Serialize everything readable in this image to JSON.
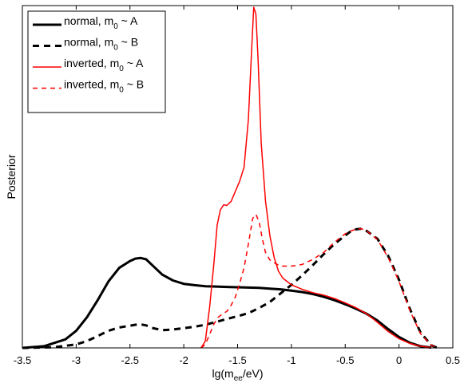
{
  "chart_data": {
    "type": "line",
    "title": "",
    "xlabel": {
      "main": "lg(m",
      "sub": "ee",
      "tail": "/eV)"
    },
    "ylabel": "Posterior",
    "xlim": [
      -3.5,
      0.5
    ],
    "ylim": [
      0,
      1
    ],
    "xticks": [
      -3.5,
      -3,
      -2.5,
      -2,
      -1.5,
      -1,
      -0.5,
      0,
      0.5
    ],
    "xtick_labels": [
      "-3.5",
      "-3",
      "-2.5",
      "-2",
      "-1.5",
      "-1",
      "-0.5",
      "0",
      "0.5"
    ],
    "grid": false,
    "legend_position": "top-left",
    "series": [
      {
        "name": {
          "pre": "normal, m",
          "sub": "0",
          "post": " ~ A"
        },
        "color": "#000000",
        "dash": "solid",
        "width": 3,
        "points": [
          [
            -3.5,
            0.0
          ],
          [
            -3.3,
            0.005
          ],
          [
            -3.1,
            0.025
          ],
          [
            -3.0,
            0.05
          ],
          [
            -2.9,
            0.09
          ],
          [
            -2.8,
            0.14
          ],
          [
            -2.7,
            0.195
          ],
          [
            -2.6,
            0.235
          ],
          [
            -2.5,
            0.255
          ],
          [
            -2.45,
            0.262
          ],
          [
            -2.4,
            0.264
          ],
          [
            -2.35,
            0.26
          ],
          [
            -2.3,
            0.245
          ],
          [
            -2.2,
            0.215
          ],
          [
            -2.1,
            0.198
          ],
          [
            -2.0,
            0.188
          ],
          [
            -1.9,
            0.184
          ],
          [
            -1.8,
            0.181
          ],
          [
            -1.7,
            0.18
          ],
          [
            -1.6,
            0.179
          ],
          [
            -1.5,
            0.178
          ],
          [
            -1.4,
            0.177
          ],
          [
            -1.3,
            0.176
          ],
          [
            -1.2,
            0.174
          ],
          [
            -1.1,
            0.172
          ],
          [
            -1.0,
            0.168
          ],
          [
            -0.9,
            0.164
          ],
          [
            -0.8,
            0.158
          ],
          [
            -0.7,
            0.15
          ],
          [
            -0.6,
            0.14
          ],
          [
            -0.5,
            0.128
          ],
          [
            -0.4,
            0.115
          ],
          [
            -0.3,
            0.1
          ],
          [
            -0.2,
            0.08
          ],
          [
            -0.1,
            0.055
          ],
          [
            0.0,
            0.032
          ],
          [
            0.1,
            0.015
          ],
          [
            0.2,
            0.005
          ],
          [
            0.3,
            0.001
          ]
        ]
      },
      {
        "name": {
          "pre": "normal,   m",
          "sub": "0",
          "post": " ~ B"
        },
        "color": "#000000",
        "dash": "8,6",
        "width": 3,
        "points": [
          [
            -3.5,
            0.0
          ],
          [
            -3.2,
            0.002
          ],
          [
            -3.0,
            0.01
          ],
          [
            -2.9,
            0.02
          ],
          [
            -2.8,
            0.035
          ],
          [
            -2.7,
            0.05
          ],
          [
            -2.6,
            0.06
          ],
          [
            -2.5,
            0.065
          ],
          [
            -2.45,
            0.068
          ],
          [
            -2.4,
            0.069
          ],
          [
            -2.35,
            0.066
          ],
          [
            -2.3,
            0.059
          ],
          [
            -2.2,
            0.052
          ],
          [
            -2.1,
            0.054
          ],
          [
            -2.0,
            0.058
          ],
          [
            -1.9,
            0.062
          ],
          [
            -1.8,
            0.068
          ],
          [
            -1.7,
            0.076
          ],
          [
            -1.6,
            0.085
          ],
          [
            -1.5,
            0.093
          ],
          [
            -1.4,
            0.102
          ],
          [
            -1.3,
            0.117
          ],
          [
            -1.2,
            0.135
          ],
          [
            -1.1,
            0.16
          ],
          [
            -1.0,
            0.185
          ],
          [
            -0.9,
            0.213
          ],
          [
            -0.8,
            0.243
          ],
          [
            -0.7,
            0.275
          ],
          [
            -0.6,
            0.305
          ],
          [
            -0.5,
            0.33
          ],
          [
            -0.45,
            0.342
          ],
          [
            -0.4,
            0.348
          ],
          [
            -0.35,
            0.35
          ],
          [
            -0.3,
            0.343
          ],
          [
            -0.2,
            0.32
          ],
          [
            -0.1,
            0.27
          ],
          [
            0.0,
            0.2
          ],
          [
            0.1,
            0.115
          ],
          [
            0.2,
            0.045
          ],
          [
            0.3,
            0.008
          ],
          [
            0.35,
            0.001
          ]
        ]
      },
      {
        "name": {
          "pre": "inverted, m",
          "sub": "0",
          "post": " ~ A"
        },
        "color": "#ff0000",
        "dash": "solid",
        "width": 1.5,
        "points": [
          [
            -1.84,
            0.0
          ],
          [
            -1.8,
            0.02
          ],
          [
            -1.76,
            0.12
          ],
          [
            -1.72,
            0.25
          ],
          [
            -1.69,
            0.36
          ],
          [
            -1.66,
            0.405
          ],
          [
            -1.63,
            0.42
          ],
          [
            -1.6,
            0.418
          ],
          [
            -1.56,
            0.43
          ],
          [
            -1.52,
            0.46
          ],
          [
            -1.48,
            0.49
          ],
          [
            -1.44,
            0.53
          ],
          [
            -1.4,
            0.67
          ],
          [
            -1.37,
            0.87
          ],
          [
            -1.35,
            1.0
          ],
          [
            -1.33,
            0.98
          ],
          [
            -1.31,
            0.85
          ],
          [
            -1.28,
            0.6
          ],
          [
            -1.24,
            0.43
          ],
          [
            -1.2,
            0.33
          ],
          [
            -1.16,
            0.265
          ],
          [
            -1.12,
            0.225
          ],
          [
            -1.08,
            0.205
          ],
          [
            -1.0,
            0.185
          ],
          [
            -0.9,
            0.172
          ],
          [
            -0.8,
            0.162
          ],
          [
            -0.7,
            0.155
          ],
          [
            -0.6,
            0.145
          ],
          [
            -0.5,
            0.132
          ],
          [
            -0.4,
            0.118
          ],
          [
            -0.3,
            0.1
          ],
          [
            -0.2,
            0.075
          ],
          [
            -0.1,
            0.048
          ],
          [
            0.0,
            0.027
          ],
          [
            0.1,
            0.013
          ],
          [
            0.2,
            0.005
          ],
          [
            0.3,
            0.001
          ]
        ]
      },
      {
        "name": {
          "pre": "inverted,  m",
          "sub": "0",
          "post": " ~ B"
        },
        "color": "#ff0000",
        "dash": "6,5",
        "width": 1.5,
        "points": [
          [
            -1.84,
            0.0
          ],
          [
            -1.8,
            0.01
          ],
          [
            -1.76,
            0.04
          ],
          [
            -1.72,
            0.07
          ],
          [
            -1.68,
            0.09
          ],
          [
            -1.64,
            0.1
          ],
          [
            -1.6,
            0.107
          ],
          [
            -1.56,
            0.125
          ],
          [
            -1.52,
            0.15
          ],
          [
            -1.48,
            0.19
          ],
          [
            -1.44,
            0.235
          ],
          [
            -1.4,
            0.305
          ],
          [
            -1.36,
            0.38
          ],
          [
            -1.33,
            0.392
          ],
          [
            -1.3,
            0.37
          ],
          [
            -1.27,
            0.32
          ],
          [
            -1.24,
            0.28
          ],
          [
            -1.2,
            0.258
          ],
          [
            -1.15,
            0.248
          ],
          [
            -1.1,
            0.24
          ],
          [
            -1.0,
            0.24
          ],
          [
            -0.95,
            0.242
          ],
          [
            -0.9,
            0.245
          ],
          [
            -0.8,
            0.26
          ],
          [
            -0.7,
            0.28
          ],
          [
            -0.6,
            0.31
          ],
          [
            -0.5,
            0.335
          ],
          [
            -0.45,
            0.343
          ],
          [
            -0.4,
            0.348
          ],
          [
            -0.35,
            0.35
          ],
          [
            -0.3,
            0.343
          ],
          [
            -0.2,
            0.318
          ],
          [
            -0.1,
            0.265
          ],
          [
            0.0,
            0.195
          ],
          [
            0.1,
            0.11
          ],
          [
            0.2,
            0.042
          ],
          [
            0.3,
            0.008
          ],
          [
            0.35,
            0.001
          ]
        ]
      }
    ]
  }
}
